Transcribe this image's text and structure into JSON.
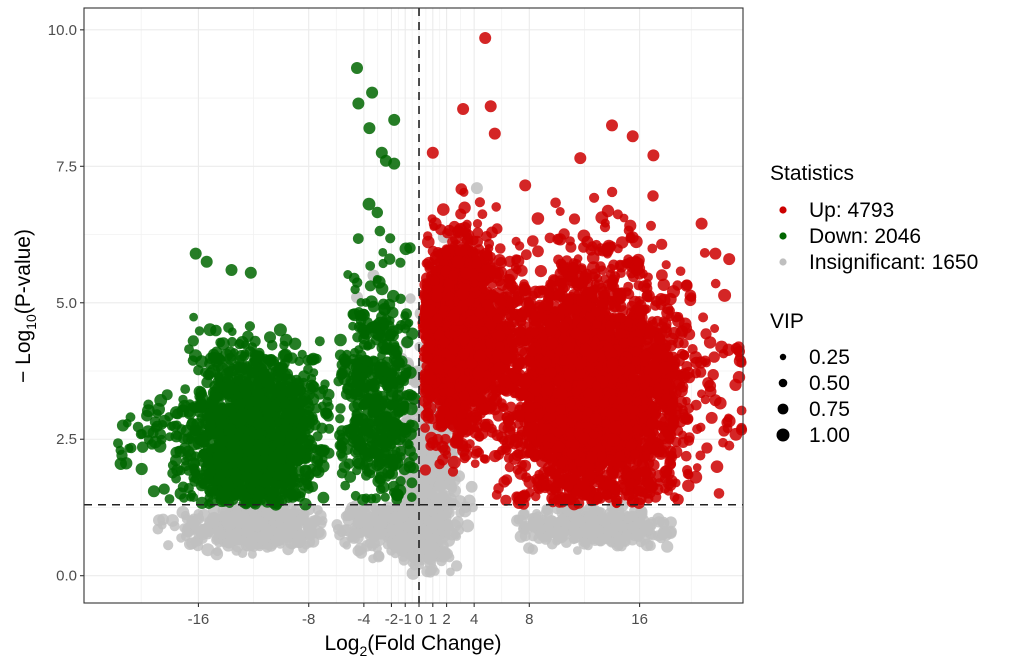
{
  "chart_data": {
    "type": "scatter",
    "xlabel": {
      "prefix": "Log",
      "sub": "2",
      "suffix": "(Fold Change)"
    },
    "ylabel": {
      "prefix": "− Log",
      "sub": "10",
      "suffix": "(P-value)"
    },
    "xlim": [
      -24.3,
      23.5
    ],
    "ylim": [
      -0.5,
      10.4
    ],
    "x_ticks": [
      -16,
      -8,
      -4,
      -2,
      -1,
      0,
      1,
      2,
      4,
      8,
      16
    ],
    "x_tick_labels": [
      "-16",
      "-8",
      "-4",
      "-2",
      "-1",
      "0",
      "1",
      "2",
      "4",
      "8",
      "16"
    ],
    "y_ticks": [
      0,
      2.5,
      5,
      7.5,
      10
    ],
    "y_tick_labels": [
      "0.0",
      "2.5",
      "5.0",
      "7.5",
      "10.0"
    ],
    "grid": true,
    "threshold_lines": {
      "x": 0,
      "y": 1.3
    },
    "legend_position": "right",
    "legend": {
      "color_title": "Statistics",
      "color_entries": [
        {
          "label": "Up: 4793",
          "color": "#cc0000"
        },
        {
          "label": "Down: 2046",
          "color": "#006600"
        },
        {
          "label": "Insignificant: 1650",
          "color": "#bfbfbf"
        }
      ],
      "size_title": "VIP",
      "size_entries": [
        "0.25",
        "0.50",
        "0.75",
        "1.00"
      ]
    },
    "series": [
      {
        "key": "up",
        "color": "#cc0000",
        "count": 4793,
        "outliers": [
          [
            4.8,
            9.85
          ],
          [
            5.2,
            8.6
          ],
          [
            3.2,
            8.55
          ],
          [
            5.5,
            8.1
          ],
          [
            14,
            8.25
          ],
          [
            15.5,
            8.05
          ],
          [
            17,
            7.7
          ],
          [
            1,
            7.75
          ],
          [
            11.7,
            7.65
          ],
          [
            7.7,
            7.15
          ],
          [
            20.5,
            6.45
          ],
          [
            21.5,
            5.9
          ],
          [
            22.5,
            5.8
          ]
        ],
        "clusters": [
          {
            "cx": 2.8,
            "cy": 4.4,
            "sx": 1.6,
            "sy": 0.9,
            "n": 1700,
            "xmin": 0.3,
            "xmax": 7.5,
            "ymin": 1.3,
            "ymax": 7.3
          },
          {
            "cx": 12.5,
            "cy": 3.3,
            "sx": 3.2,
            "sy": 1.2,
            "n": 3000,
            "xmin": 5.5,
            "xmax": 23.5,
            "ymin": 1.3,
            "ymax": 7.1
          }
        ]
      },
      {
        "key": "down",
        "color": "#006600",
        "count": 2046,
        "outliers": [
          [
            -4.5,
            9.3
          ],
          [
            -3.4,
            8.85
          ],
          [
            -4.4,
            8.65
          ],
          [
            -1.8,
            8.35
          ],
          [
            -3.6,
            8.2
          ],
          [
            -2.7,
            7.75
          ],
          [
            -2.4,
            7.6
          ],
          [
            -1.8,
            7.55
          ],
          [
            -16.2,
            5.9
          ],
          [
            -15.4,
            5.75
          ],
          [
            -13.6,
            5.6
          ],
          [
            -12.2,
            5.55
          ]
        ],
        "clusters": [
          {
            "cx": -12,
            "cy": 2.55,
            "sx": 2.4,
            "sy": 0.8,
            "n": 1550,
            "xmin": -22,
            "xmax": -6.5,
            "ymin": 1.3,
            "ymax": 4.9
          },
          {
            "cx": -2.8,
            "cy": 3.2,
            "sx": 1.6,
            "sy": 1.2,
            "n": 480,
            "xmin": -6,
            "xmax": -0.3,
            "ymin": 1.3,
            "ymax": 7.0
          }
        ]
      },
      {
        "key": "insignificant",
        "color": "#bfbfbf",
        "count": 1650,
        "outliers": [
          [
            4.2,
            7.1
          ],
          [
            1.8,
            6.2
          ],
          [
            -4.5,
            5.1
          ],
          [
            -3.3,
            5.5
          ]
        ],
        "clusters": [
          {
            "cx": 0.6,
            "cy": 1.9,
            "sx": 1.0,
            "sy": 1.1,
            "n": 520,
            "xmin": -1.5,
            "xmax": 4,
            "ymin": 0.0,
            "ymax": 5.8
          },
          {
            "cx": -1.5,
            "cy": 0.9,
            "sx": 2.0,
            "sy": 0.3,
            "n": 320,
            "xmin": -6,
            "xmax": 3,
            "ymin": 0.3,
            "ymax": 1.3
          },
          {
            "cx": -12,
            "cy": 0.9,
            "sx": 2.5,
            "sy": 0.2,
            "n": 480,
            "xmin": -19,
            "xmax": -6.5,
            "ymin": 0.35,
            "ymax": 1.3
          },
          {
            "cx": 12.5,
            "cy": 0.9,
            "sx": 3.0,
            "sy": 0.2,
            "n": 330,
            "xmin": 7,
            "xmax": 18.5,
            "ymin": 0.45,
            "ymax": 1.3
          }
        ]
      }
    ]
  }
}
